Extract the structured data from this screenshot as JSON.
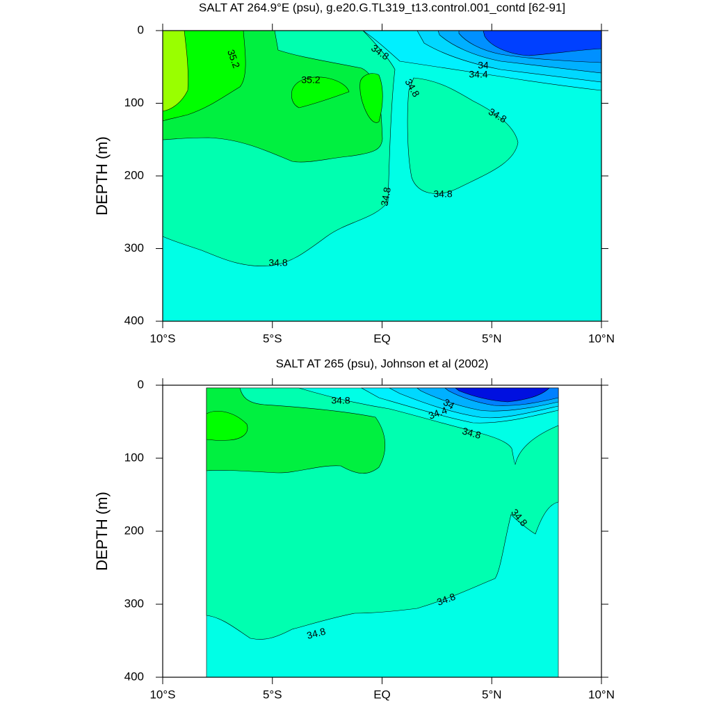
{
  "chart_data": [
    {
      "type": "contour",
      "title": "SALT AT 264.9°E (psu), g.e20.G.TL319_t13.control.001_contd [62-91]",
      "y_label": "DEPTH (m)",
      "xlim": [
        -10,
        10
      ],
      "xticks": [
        {
          "value": -10,
          "label": "10°S"
        },
        {
          "value": -5,
          "label": "5°S"
        },
        {
          "value": 0,
          "label": "EQ"
        },
        {
          "value": 5,
          "label": "5°N"
        },
        {
          "value": 10,
          "label": "10°N"
        }
      ],
      "ylim": [
        0,
        400
      ],
      "y_inverted": true,
      "yticks": [
        0,
        100,
        200,
        300,
        400
      ],
      "contour_labels": [
        35.2,
        35.2,
        34.8,
        34,
        34.4,
        34.8,
        34.8,
        34.8,
        34.8,
        34.8
      ]
    },
    {
      "type": "contour",
      "title": "SALT AT 265 (psu), Johnson et al (2002)",
      "y_label": "DEPTH (m)",
      "xlim": [
        -10,
        10
      ],
      "xticks": [
        {
          "value": -10,
          "label": "10°S"
        },
        {
          "value": -5,
          "label": "5°S"
        },
        {
          "value": 0,
          "label": "EQ"
        },
        {
          "value": 5,
          "label": "5°N"
        },
        {
          "value": 10,
          "label": "10°N"
        }
      ],
      "ylim": [
        0,
        400
      ],
      "y_inverted": true,
      "yticks": [
        0,
        100,
        200,
        300,
        400
      ],
      "contour_labels": [
        34.8,
        34,
        34.4,
        34.8,
        34.8,
        34.8,
        34.8
      ]
    }
  ]
}
